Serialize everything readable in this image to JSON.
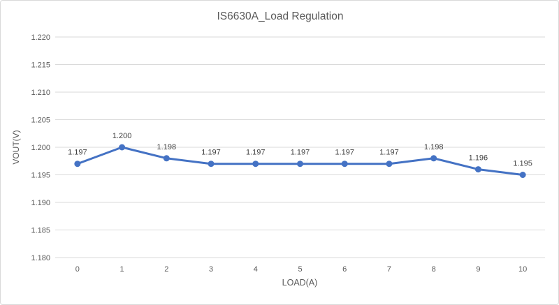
{
  "chart_data": {
    "type": "line",
    "title": "IS6630A_Load Regulation",
    "xlabel": "LOAD(A)",
    "ylabel": "VOUT(V)",
    "categories": [
      0,
      1,
      2,
      3,
      4,
      5,
      6,
      7,
      8,
      9,
      10
    ],
    "xtick_labels": [
      "0",
      "1",
      "2",
      "3",
      "4",
      "5",
      "6",
      "7",
      "8",
      "9",
      "10"
    ],
    "series": [
      {
        "name": "VOUT",
        "values": [
          1.197,
          1.2,
          1.198,
          1.197,
          1.197,
          1.197,
          1.197,
          1.197,
          1.198,
          1.196,
          1.195
        ],
        "data_labels": [
          "1.197",
          "1.200",
          "1.198",
          "1.197",
          "1.197",
          "1.197",
          "1.197",
          "1.197",
          "1.198",
          "1.196",
          "1.195"
        ]
      }
    ],
    "ylim": [
      1.18,
      1.22
    ],
    "ytick_step": 0.005,
    "ytick_labels": [
      "1.180",
      "1.185",
      "1.190",
      "1.195",
      "1.200",
      "1.205",
      "1.210",
      "1.215",
      "1.220"
    ],
    "grid": true,
    "legend_position": "none",
    "colors": {
      "line": "#4472C4",
      "marker": "#4472C4",
      "grid": "#d9d9d9",
      "border": "#d9d9d9",
      "background": "#ffffff",
      "axis_text": "#595959",
      "title_text": "#595959",
      "data_label_text": "#404040"
    }
  }
}
